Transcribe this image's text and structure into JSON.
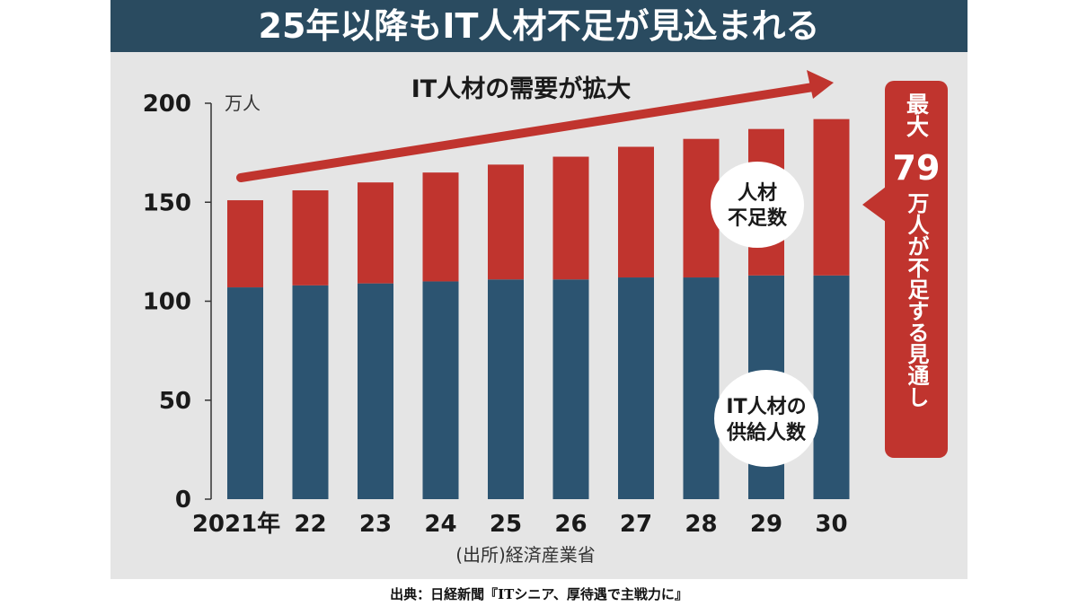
{
  "header": {
    "title": "25年以降もIT人材不足が見込まれる"
  },
  "chart_data": {
    "type": "bar",
    "stacked": true,
    "categories": [
      "2021年",
      "22",
      "23",
      "24",
      "25",
      "26",
      "27",
      "28",
      "29",
      "30"
    ],
    "series": [
      {
        "name": "IT人材の供給人数",
        "values": [
          107,
          108,
          109,
          110,
          111,
          111,
          112,
          112,
          113,
          113
        ],
        "color": "#2c5471"
      },
      {
        "name": "人材不足数",
        "values": [
          44,
          48,
          51,
          55,
          58,
          62,
          66,
          70,
          74,
          79
        ],
        "color": "#c0342e"
      }
    ],
    "ylim": [
      0,
      200
    ],
    "yticks": [
      0,
      50,
      100,
      150,
      200
    ],
    "yunit": "万人",
    "grid": false,
    "background": "#e5e5e5",
    "demand_arrow_label": "IT人材の需要が拡大",
    "shortage_label_lines": [
      "人材",
      "不足数"
    ],
    "supply_label_lines": [
      "IT人材の",
      "供給人数"
    ],
    "callout": {
      "top": "最大",
      "number": "79",
      "rest": "万人が不足する見通し",
      "color": "#c0342e"
    },
    "source": "(出所)経済産業省"
  },
  "caption": "出典：日経新聞『ITシニア、厚待遇で主戦力に』"
}
